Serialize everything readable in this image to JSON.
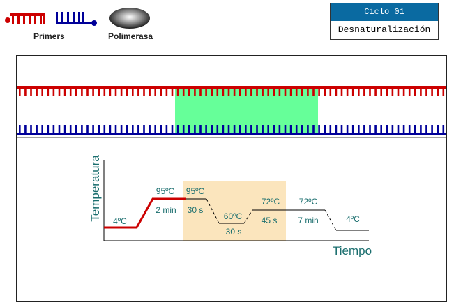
{
  "legend": {
    "primers_label": "Primers",
    "polimerasa_label": "Polimerasa"
  },
  "cycle": {
    "header": "Ciclo 01",
    "step": "Desnaturalización"
  },
  "graph": {
    "ylabel": "Temperatura",
    "xlabel": "Tiempo",
    "labels": {
      "t4_start": "4ºC",
      "t95_init": "95ºC",
      "d2min": "2 min",
      "t95_cycle": "95ºC",
      "d30s_a": "30 s",
      "t60": "60ºC",
      "d30s_b": "30 s",
      "t72_a": "72ºC",
      "d45s": "45 s",
      "t72_b": "72ºC",
      "d7min": "7 min",
      "t4_end": "4ºC"
    }
  },
  "colors": {
    "strand_top": "#cc0000",
    "strand_bottom": "#000099",
    "highlight_green": "#66ff99",
    "highlight_cycle": "#fbe5bd",
    "header_blue": "#0a6aa1",
    "text_teal": "#1a6e6e",
    "profile_red": "#cc0000"
  }
}
